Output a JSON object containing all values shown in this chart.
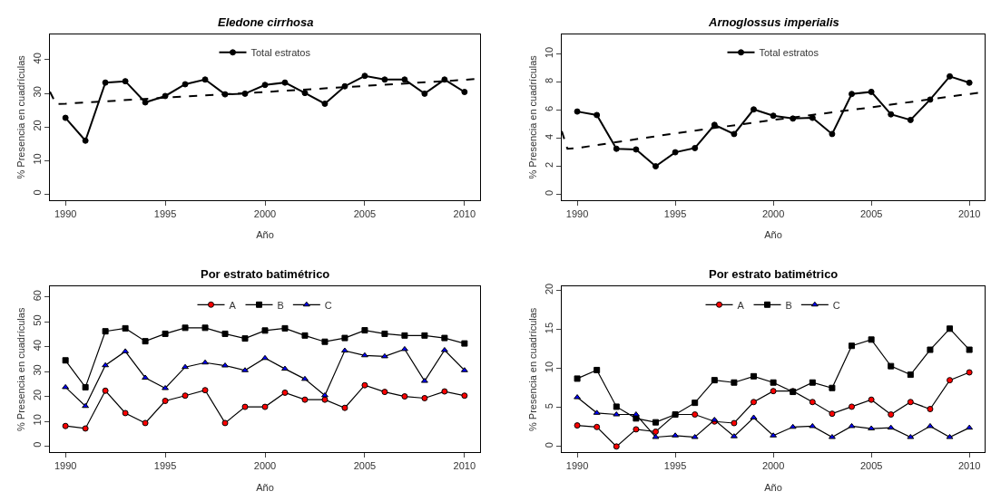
{
  "chart_data": [
    {
      "type": "line",
      "title": "Eledone cirrhosa",
      "xlabel": "Año",
      "ylabel": "% Presencia en cuadrículas",
      "xlim": [
        1989.22,
        2010.78
      ],
      "xticks": [
        1990,
        1995,
        2000,
        2005,
        2010
      ],
      "ylim": [
        -1.8,
        47.6
      ],
      "yticks": [
        0,
        10,
        20,
        30,
        40
      ],
      "legend": "top",
      "x": [
        1990,
        1991,
        1992,
        1993,
        1994,
        1995,
        1996,
        1997,
        1998,
        1999,
        2000,
        2001,
        2002,
        2003,
        2004,
        2005,
        2006,
        2007,
        2008,
        2009,
        2010
      ],
      "series": [
        {
          "name": "Total estratos",
          "color": "#000000",
          "marker": "circle",
          "line_style": "solid",
          "values": [
            22.7,
            15.9,
            33.2,
            33.6,
            27.3,
            29.2,
            32.7,
            34.1,
            29.7,
            29.9,
            32.5,
            33.2,
            30.1,
            26.9,
            32.1,
            35.2,
            34.1,
            34.1,
            29.9,
            34.1,
            30.4
          ]
        },
        {
          "type": "line",
          "color": "#000000",
          "marker": "none",
          "line_style": "dashed",
          "x": [
            1989.22,
            1989.53,
            1990,
            1995,
            2000,
            2005,
            2010,
            2010.78
          ],
          "values": [
            30.5,
            26.8,
            26.9,
            28.7,
            30.4,
            32.2,
            34.0,
            34.4
          ]
        }
      ]
    },
    {
      "type": "line",
      "title": "Arnoglossus imperialis",
      "xlabel": "Año",
      "ylabel": "% Presencia en cuadrículas",
      "xlim": [
        1989.21,
        2010.78
      ],
      "xticks": [
        1990,
        1995,
        2000,
        2005,
        2010
      ],
      "ylim": [
        -0.4,
        11.4
      ],
      "yticks": [
        0,
        2,
        4,
        6,
        8,
        10
      ],
      "legend": "top",
      "x": [
        1990,
        1991,
        1992,
        1993,
        1994,
        1995,
        1996,
        1997,
        1998,
        1999,
        2000,
        2001,
        2002,
        2003,
        2004,
        2005,
        2006,
        2007,
        2008,
        2009,
        2010
      ],
      "series": [
        {
          "name": "Total estratos",
          "color": "#000000",
          "marker": "circle",
          "line_style": "solid",
          "values": [
            5.9,
            5.65,
            3.25,
            3.2,
            2.0,
            3.0,
            3.3,
            4.95,
            4.3,
            6.05,
            5.6,
            5.4,
            5.45,
            4.3,
            7.15,
            7.3,
            5.7,
            5.3,
            6.75,
            8.4,
            7.95
          ]
        },
        {
          "type": "line",
          "color": "#000000",
          "marker": "none",
          "line_style": "dashed",
          "x": [
            1989.21,
            1989.5,
            1990,
            1995,
            2000,
            2005,
            2010,
            2010.78
          ],
          "values": [
            4.5,
            3.25,
            3.3,
            4.35,
            5.3,
            6.2,
            7.15,
            7.3
          ]
        }
      ]
    },
    {
      "type": "line",
      "title": "Por estrato batimétrico",
      "xlabel": "Año",
      "ylabel": "% Presencia en cuadrículas",
      "xlim": [
        1989.22,
        2010.78
      ],
      "xticks": [
        1990,
        1995,
        2000,
        2005,
        2010
      ],
      "ylim": [
        -2.5,
        64.2
      ],
      "yticks": [
        0,
        10,
        20,
        30,
        40,
        50,
        60
      ],
      "legend": "top",
      "x": [
        1990,
        1991,
        1992,
        1993,
        1994,
        1995,
        1996,
        1997,
        1998,
        1999,
        2000,
        2001,
        2002,
        2003,
        2004,
        2005,
        2006,
        2007,
        2008,
        2009,
        2010
      ],
      "series": [
        {
          "name": "A",
          "color": "#ff0000",
          "marker": "circle",
          "line_style": "solid",
          "values": [
            8.1,
            7.1,
            22.3,
            13.3,
            9.3,
            18.2,
            20.3,
            22.5,
            9.3,
            15.8,
            15.8,
            21.5,
            18.7,
            18.7,
            15.4,
            24.5,
            21.8,
            20.0,
            19.3,
            22.0,
            20.3
          ]
        },
        {
          "name": "B",
          "color": "#000000",
          "marker": "square",
          "line_style": "solid",
          "values": [
            34.5,
            23.7,
            46.2,
            47.4,
            42.2,
            45.2,
            47.6,
            47.6,
            45.2,
            43.3,
            46.5,
            47.4,
            44.5,
            42.0,
            43.5,
            46.6,
            45.2,
            44.5,
            44.5,
            43.5,
            41.3
          ]
        },
        {
          "name": "C",
          "color": "#0000ff",
          "marker": "triangle",
          "line_style": "solid",
          "values": [
            23.7,
            16.1,
            32.5,
            38.1,
            27.5,
            23.3,
            31.8,
            33.6,
            32.4,
            30.5,
            35.4,
            31.1,
            27.0,
            20.4,
            38.4,
            36.5,
            36.1,
            39.0,
            26.2,
            38.6,
            30.5
          ]
        }
      ]
    },
    {
      "type": "line",
      "title": "Por estrato batimétrico",
      "xlabel": "Año",
      "ylabel": "% Presencia en cuadrículas",
      "xlim": [
        1989.21,
        2010.78
      ],
      "xticks": [
        1990,
        1995,
        2000,
        2005,
        2010
      ],
      "ylim": [
        -0.75,
        20.5
      ],
      "yticks": [
        0,
        5,
        10,
        15,
        20
      ],
      "legend": "top",
      "x": [
        1990,
        1991,
        1992,
        1993,
        1994,
        1995,
        1996,
        1997,
        1998,
        1999,
        2000,
        2001,
        2002,
        2003,
        2004,
        2005,
        2006,
        2007,
        2008,
        2009,
        2010
      ],
      "series": [
        {
          "name": "A",
          "color": "#ff0000",
          "marker": "circle",
          "line_style": "solid",
          "values": [
            2.7,
            2.5,
            0,
            2.2,
            1.9,
            4.1,
            4.1,
            3.2,
            3.0,
            5.7,
            7.1,
            7.1,
            5.7,
            4.2,
            5.1,
            6.0,
            4.1,
            5.7,
            4.8,
            8.5,
            9.5
          ]
        },
        {
          "name": "B",
          "color": "#000000",
          "marker": "square",
          "line_style": "solid",
          "values": [
            8.7,
            9.8,
            5.1,
            3.6,
            3.1,
            4.1,
            5.6,
            8.5,
            8.2,
            9.0,
            8.2,
            7.0,
            8.2,
            7.5,
            12.9,
            13.7,
            10.3,
            9.2,
            12.4,
            15.1,
            12.4
          ]
        },
        {
          "name": "C",
          "color": "#0000ff",
          "marker": "triangle",
          "line_style": "solid",
          "values": [
            6.3,
            4.3,
            4.1,
            4.1,
            1.2,
            1.4,
            1.2,
            3.4,
            1.3,
            3.7,
            1.4,
            2.5,
            2.6,
            1.2,
            2.6,
            2.3,
            2.4,
            1.2,
            2.6,
            1.2,
            2.4
          ]
        }
      ]
    }
  ]
}
